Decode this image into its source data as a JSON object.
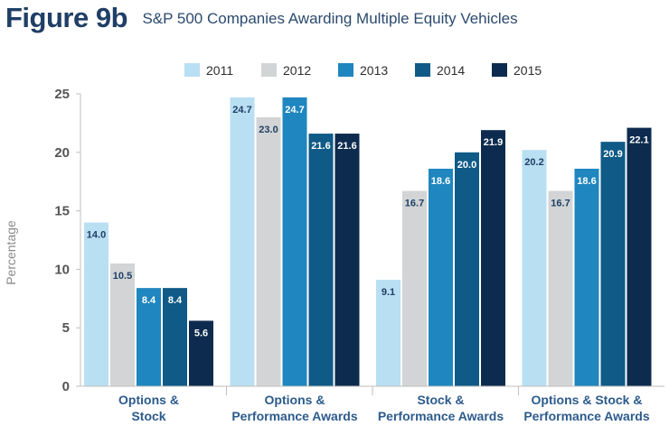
{
  "header": {
    "figure_label": "Figure 9b",
    "title": "S&P 500 Companies Awarding Multiple Equity Vehicles"
  },
  "chart_data": {
    "type": "bar",
    "ylabel": "Percentage",
    "xlabel": "",
    "ylim": [
      0,
      25
    ],
    "yticks": [
      0,
      5,
      10,
      15,
      20,
      25
    ],
    "grid": false,
    "legend_position": "top-center",
    "categories": [
      [
        "Options &",
        "Stock"
      ],
      [
        "Options &",
        "Performance Awards"
      ],
      [
        "Stock &",
        "Performance Awards"
      ],
      [
        "Options & Stock &",
        "Performance Awards"
      ]
    ],
    "series": [
      {
        "name": "2011",
        "color": "#b9dff3",
        "label_color": "#1f3f66",
        "values": [
          14.0,
          24.7,
          9.1,
          20.2
        ],
        "labels": [
          "14.0",
          "24.7",
          "9.1",
          "20.2"
        ]
      },
      {
        "name": "2012",
        "color": "#d2d4d5",
        "label_color": "#1f3f66",
        "values": [
          10.5,
          23.0,
          16.7,
          16.7
        ],
        "labels": [
          "10.5",
          "23.0",
          "16.7",
          "16.7"
        ]
      },
      {
        "name": "2013",
        "color": "#1f86bf",
        "label_color": "#ffffff",
        "values": [
          8.4,
          24.7,
          18.6,
          18.6
        ],
        "labels": [
          "8.4",
          "24.7",
          "18.6",
          "18.6"
        ]
      },
      {
        "name": "2014",
        "color": "#0f5a87",
        "label_color": "#ffffff",
        "values": [
          8.4,
          21.6,
          20.0,
          20.9
        ],
        "labels": [
          "8.4",
          "21.6",
          "20.0",
          "20.9"
        ]
      },
      {
        "name": "2015",
        "color": "#0d2b4e",
        "label_color": "#ffffff",
        "values": [
          5.6,
          21.6,
          21.9,
          22.1
        ],
        "labels": [
          "5.6",
          "21.6",
          "21.9",
          "22.1"
        ]
      }
    ]
  }
}
